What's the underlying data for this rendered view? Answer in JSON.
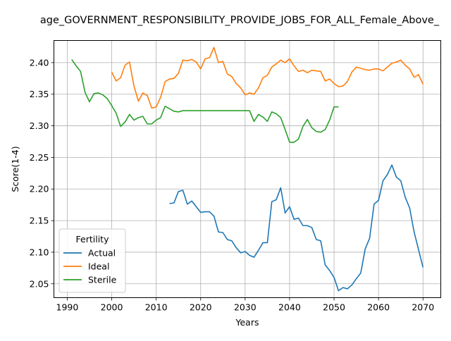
{
  "chart_data": {
    "type": "line",
    "title": "age_GOVERNMENT_RESPONSIBILITY_PROVIDE_JOBS_FOR_ALL_Female_Above_",
    "xlabel": "Years",
    "ylabel": "Score(1-4)",
    "xlim": [
      1987,
      2074
    ],
    "ylim": [
      2.028,
      2.435
    ],
    "xticks": [
      1990,
      2000,
      2010,
      2020,
      2030,
      2040,
      2050,
      2060,
      2070
    ],
    "yticks": [
      2.05,
      2.1,
      2.15,
      2.2,
      2.25,
      2.3,
      2.35,
      2.4
    ],
    "ytick_labels": [
      "2.05",
      "2.10",
      "2.15",
      "2.20",
      "2.25",
      "2.30",
      "2.35",
      "2.40"
    ],
    "grid": true,
    "legend": {
      "title": "Fertility",
      "position": "lower-left"
    },
    "series": [
      {
        "name": "Actual",
        "color": "#1f77b4",
        "x": [
          2013,
          2014,
          2015,
          2016,
          2017,
          2018,
          2019,
          2020,
          2021,
          2022,
          2023,
          2024,
          2025,
          2026,
          2027,
          2028,
          2029,
          2030,
          2031,
          2032,
          2033,
          2034,
          2035,
          2036,
          2037,
          2038,
          2039,
          2040,
          2041,
          2042,
          2043,
          2044,
          2045,
          2046,
          2047,
          2048,
          2049,
          2050,
          2051,
          2052,
          2053,
          2054,
          2055,
          2056,
          2057,
          2058,
          2059,
          2060,
          2061,
          2062,
          2063,
          2064,
          2065,
          2066,
          2067,
          2068,
          2069,
          2070
        ],
        "y": [
          2.177,
          2.178,
          2.196,
          2.198,
          2.176,
          2.181,
          2.172,
          2.163,
          2.164,
          2.164,
          2.157,
          2.132,
          2.131,
          2.12,
          2.118,
          2.107,
          2.099,
          2.101,
          2.095,
          2.092,
          2.103,
          2.115,
          2.115,
          2.18,
          2.183,
          2.202,
          2.162,
          2.172,
          2.152,
          2.154,
          2.142,
          2.142,
          2.139,
          2.12,
          2.118,
          2.08,
          2.071,
          2.06,
          2.039,
          2.044,
          2.042,
          2.048,
          2.058,
          2.067,
          2.105,
          2.122,
          2.176,
          2.182,
          2.213,
          2.223,
          2.238,
          2.219,
          2.213,
          2.187,
          2.17,
          2.132,
          2.104,
          2.076
        ]
      },
      {
        "name": "Ideal",
        "color": "#ff7f0e",
        "x": [
          2000,
          2001,
          2002,
          2003,
          2004,
          2005,
          2006,
          2007,
          2008,
          2009,
          2010,
          2011,
          2012,
          2013,
          2014,
          2015,
          2016,
          2017,
          2018,
          2019,
          2020,
          2021,
          2022,
          2023,
          2024,
          2025,
          2026,
          2027,
          2028,
          2029,
          2030,
          2031,
          2032,
          2033,
          2034,
          2035,
          2036,
          2037,
          2038,
          2039,
          2040,
          2041,
          2042,
          2043,
          2044,
          2045,
          2046,
          2047,
          2048,
          2049,
          2050,
          2051,
          2052,
          2053,
          2054,
          2055,
          2056,
          2057,
          2058,
          2059,
          2060,
          2061,
          2062,
          2063,
          2064,
          2065,
          2066,
          2067,
          2068,
          2069,
          2070
        ],
        "y": [
          2.385,
          2.371,
          2.376,
          2.396,
          2.401,
          2.363,
          2.339,
          2.352,
          2.348,
          2.328,
          2.33,
          2.345,
          2.37,
          2.374,
          2.375,
          2.383,
          2.404,
          2.403,
          2.405,
          2.401,
          2.39,
          2.406,
          2.408,
          2.424,
          2.4,
          2.402,
          2.382,
          2.378,
          2.367,
          2.36,
          2.349,
          2.352,
          2.35,
          2.36,
          2.376,
          2.38,
          2.393,
          2.398,
          2.404,
          2.4,
          2.406,
          2.395,
          2.386,
          2.388,
          2.384,
          2.388,
          2.387,
          2.386,
          2.371,
          2.374,
          2.367,
          2.362,
          2.363,
          2.37,
          2.385,
          2.393,
          2.391,
          2.389,
          2.388,
          2.39,
          2.39,
          2.387,
          2.393,
          2.399,
          2.401,
          2.404,
          2.396,
          2.39,
          2.377,
          2.381,
          2.366
        ]
      },
      {
        "name": "Sterile",
        "color": "#2ca02c",
        "x": [
          1991,
          1992,
          1993,
          1994,
          1995,
          1996,
          1997,
          1998,
          1999,
          2000,
          2001,
          2002,
          2003,
          2004,
          2005,
          2006,
          2007,
          2008,
          2009,
          2010,
          2011,
          2012,
          2013,
          2014,
          2015,
          2016,
          2017,
          2018,
          2019,
          2020,
          2021,
          2022,
          2023,
          2024,
          2025,
          2026,
          2027,
          2028,
          2029,
          2030,
          2031,
          2032,
          2033,
          2034,
          2035,
          2036,
          2037,
          2038,
          2039,
          2040,
          2041,
          2042,
          2043,
          2044,
          2045,
          2046,
          2047,
          2048,
          2049,
          2050,
          2051
        ],
        "y": [
          2.405,
          2.395,
          2.386,
          2.353,
          2.338,
          2.351,
          2.352,
          2.349,
          2.343,
          2.332,
          2.32,
          2.299,
          2.306,
          2.318,
          2.309,
          2.313,
          2.315,
          2.303,
          2.303,
          2.309,
          2.313,
          2.331,
          2.327,
          2.323,
          2.322,
          2.324,
          2.324,
          2.324,
          2.324,
          2.324,
          2.324,
          2.324,
          2.324,
          2.324,
          2.324,
          2.324,
          2.324,
          2.324,
          2.324,
          2.324,
          2.324,
          2.307,
          2.318,
          2.314,
          2.307,
          2.322,
          2.319,
          2.313,
          2.294,
          2.274,
          2.274,
          2.279,
          2.299,
          2.31,
          2.297,
          2.291,
          2.29,
          2.294,
          2.309,
          2.33,
          2.33
        ]
      }
    ]
  }
}
